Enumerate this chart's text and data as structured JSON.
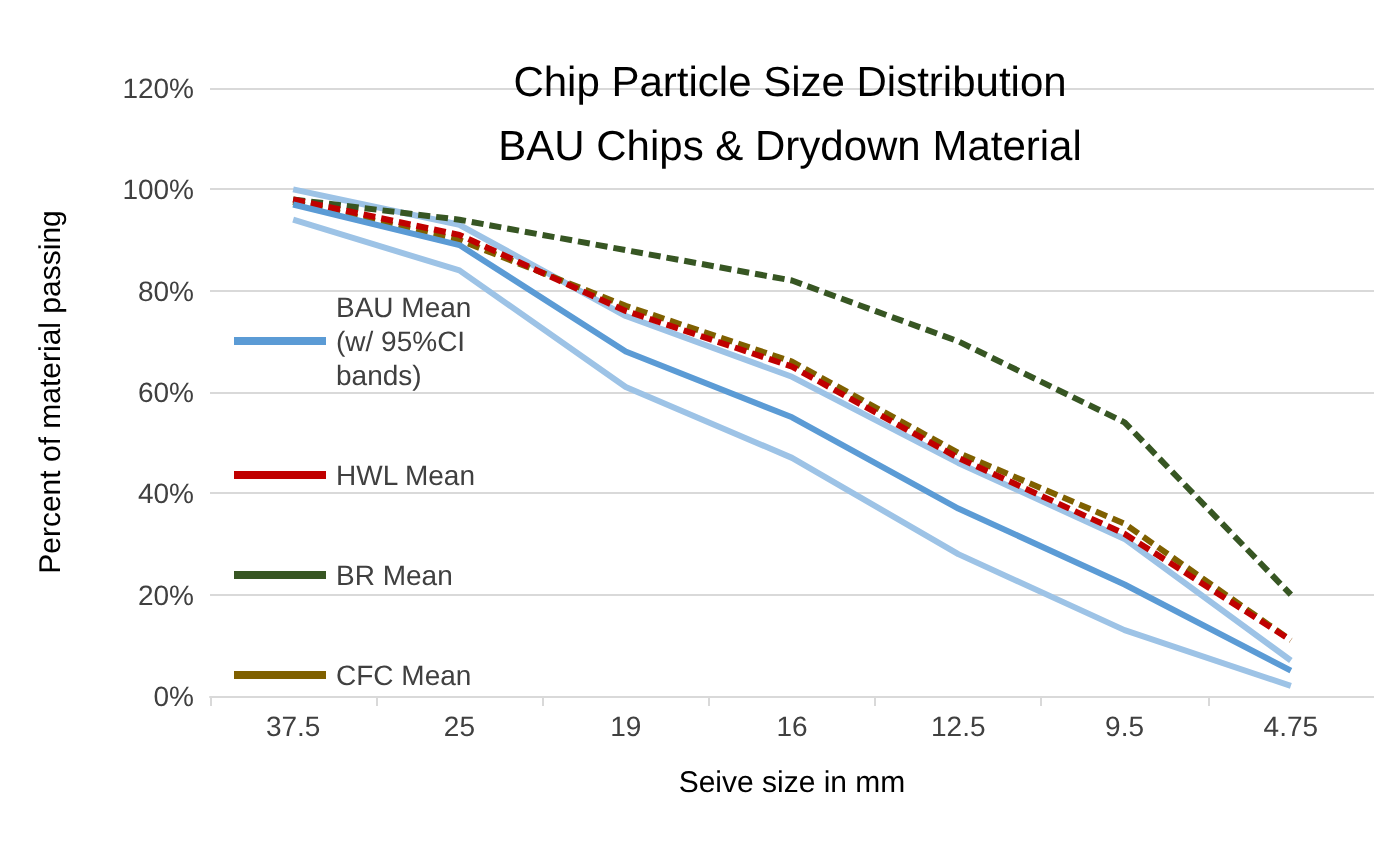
{
  "chart_data": {
    "type": "line",
    "title": "Chip Particle Size Distribution",
    "subtitle": "BAU Chips & Drydown Material",
    "xlabel": "Seive size in mm",
    "ylabel": "Percent of material passing",
    "categories": [
      "37.5",
      "25",
      "19",
      "16",
      "12.5",
      "9.5",
      "4.75"
    ],
    "series": [
      {
        "name": "BAU Mean (w/ 95%CI bands)",
        "color": "#5b9bd5",
        "line_style": "solid",
        "values": [
          97,
          89,
          68,
          55,
          37,
          22,
          5
        ]
      },
      {
        "color": "#9dc3e6",
        "line_style": "solid",
        "values": [
          100,
          93,
          75,
          63,
          46,
          31,
          7
        ]
      },
      {
        "color": "#9dc3e6",
        "line_style": "solid",
        "values": [
          94,
          84,
          61,
          47,
          28,
          13,
          2
        ]
      },
      {
        "name": "HWL Mean",
        "color": "#c00000",
        "line_style": "dashed",
        "values": [
          98,
          91,
          76,
          65,
          47,
          32,
          11
        ]
      },
      {
        "name": "BR Mean",
        "color": "#375623",
        "line_style": "dashed",
        "values": [
          98,
          94,
          88,
          82,
          70,
          54,
          20
        ]
      },
      {
        "name": "CFC Mean",
        "color": "#7f6000",
        "line_style": "dashed",
        "values": [
          97.5,
          90,
          77,
          66,
          48,
          34,
          11
        ]
      }
    ],
    "ylim": [
      0,
      120
    ],
    "yticks": [
      {
        "value": 0,
        "label": "0%"
      },
      {
        "value": 20,
        "label": "20%"
      },
      {
        "value": 40,
        "label": "40%"
      },
      {
        "value": 60,
        "label": "60%"
      },
      {
        "value": 80,
        "label": "80%"
      },
      {
        "value": 100,
        "label": "100%"
      },
      {
        "value": 120,
        "label": "120%"
      }
    ],
    "grid": "y",
    "legend": "left",
    "marker": "none"
  }
}
